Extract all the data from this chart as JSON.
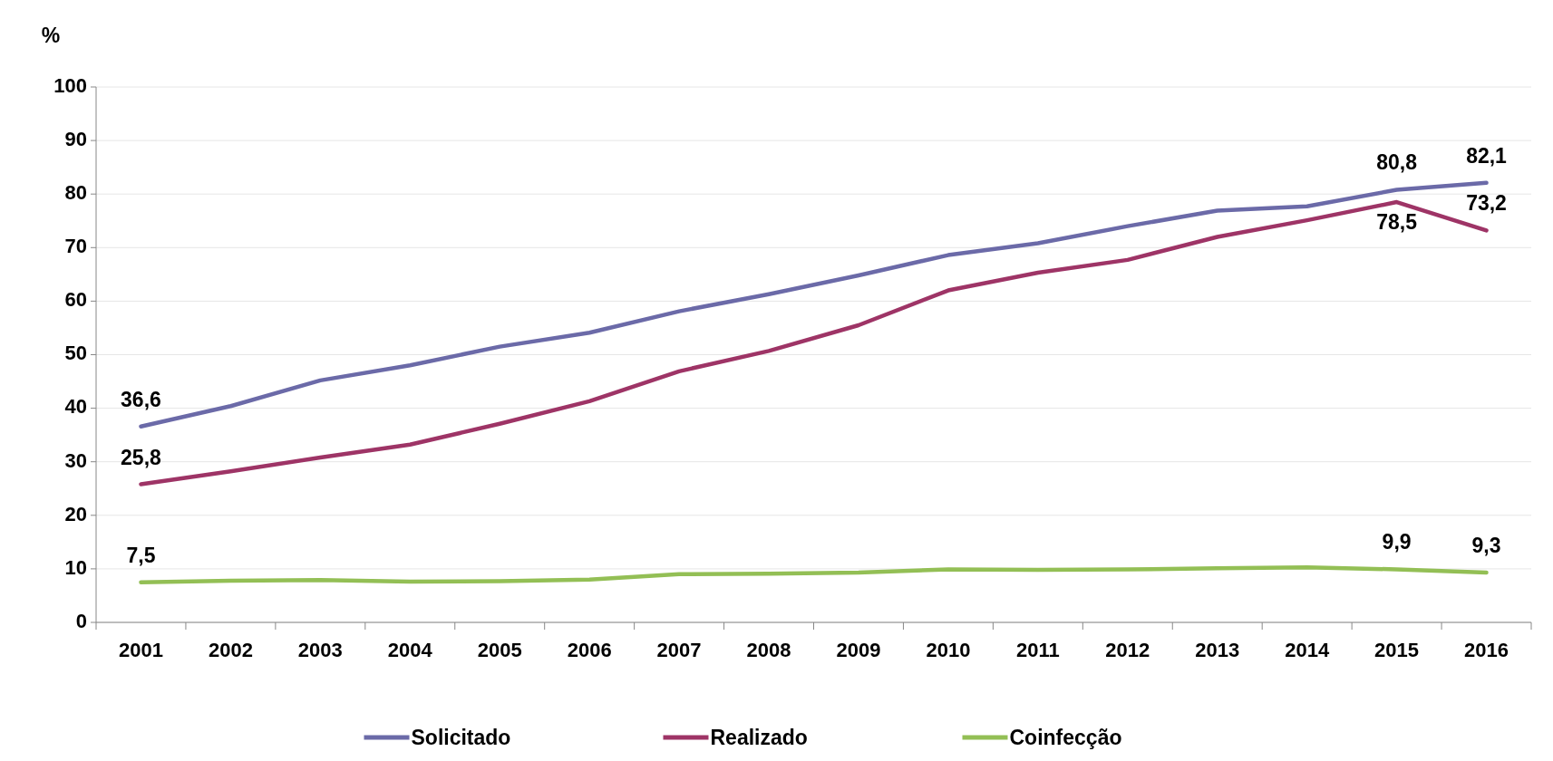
{
  "chart_data": {
    "type": "line",
    "ylabel": "%",
    "categories": [
      "2001",
      "2002",
      "2003",
      "2004",
      "2005",
      "2006",
      "2007",
      "2008",
      "2009",
      "2010",
      "2011",
      "2012",
      "2013",
      "2014",
      "2015",
      "2016"
    ],
    "series": [
      {
        "name": "Solicitado",
        "color": "#6b6aa8",
        "values": [
          36.6,
          40.4,
          45.2,
          48.0,
          51.5,
          54.1,
          58.1,
          61.3,
          64.8,
          68.6,
          70.8,
          74.0,
          76.9,
          77.7,
          80.8,
          82.1
        ],
        "value_labels": [
          "36,6",
          null,
          null,
          null,
          null,
          null,
          null,
          null,
          null,
          null,
          null,
          null,
          null,
          null,
          "80,8",
          "82,1"
        ]
      },
      {
        "name": "Realizado",
        "color": "#9e3466",
        "values": [
          25.8,
          28.2,
          30.8,
          33.2,
          37.1,
          41.3,
          46.9,
          50.7,
          55.5,
          62.0,
          65.3,
          67.7,
          72.0,
          75.1,
          78.5,
          73.2
        ],
        "value_labels": [
          "25,8",
          null,
          null,
          null,
          null,
          null,
          null,
          null,
          null,
          null,
          null,
          null,
          null,
          null,
          "78,5",
          "73,2"
        ]
      },
      {
        "name": "Coinfecção",
        "color": "#93bf55",
        "values": [
          7.5,
          7.8,
          7.9,
          7.6,
          7.7,
          8.0,
          9.0,
          9.1,
          9.3,
          9.9,
          9.8,
          9.9,
          10.1,
          10.3,
          9.9,
          9.3
        ],
        "value_labels": [
          "7,5",
          null,
          null,
          null,
          null,
          null,
          null,
          null,
          null,
          null,
          null,
          null,
          null,
          null,
          "9,9",
          "9,3"
        ]
      }
    ],
    "ylim": [
      0,
      100
    ],
    "yticks": [
      0,
      10,
      20,
      30,
      40,
      50,
      60,
      70,
      80,
      90,
      100
    ],
    "grid": "y",
    "legend": "bottom",
    "marker": "none",
    "line_style": "solid"
  }
}
